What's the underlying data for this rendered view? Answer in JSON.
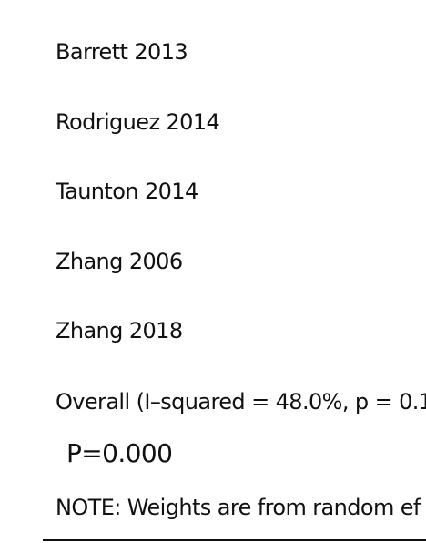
{
  "chart_data": {
    "type": "forest",
    "studies": [
      {
        "label": "Barrett 2013"
      },
      {
        "label": "Rodriguez 2014"
      },
      {
        "label": "Taunton 2014"
      },
      {
        "label": "Zhang 2006"
      },
      {
        "label": "Zhang 2018"
      }
    ],
    "overall_label": "Overall  (I–squared = 48.0%, p = 0.1",
    "p_value": "P=0.000",
    "note": "NOTE: Weights are from random ef"
  }
}
